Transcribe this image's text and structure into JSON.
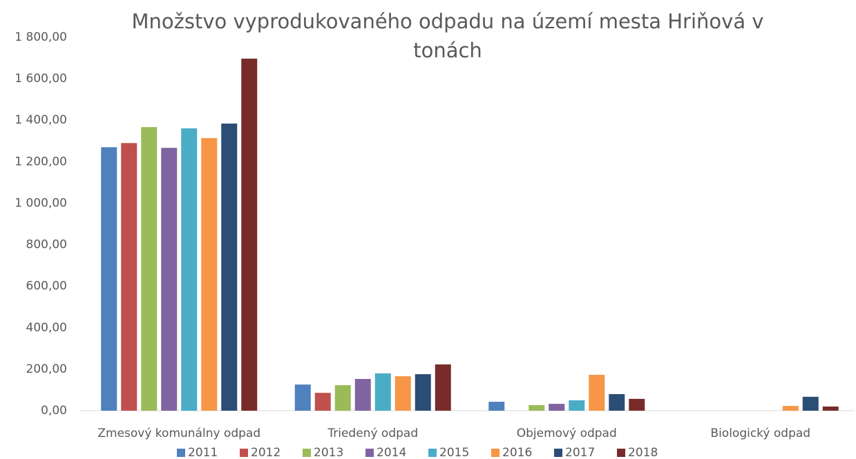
{
  "chart_data": {
    "type": "bar",
    "title": "Množstvo vyprodukovaného odpadu na území mesta Hriňová v tonách",
    "categories": [
      "Zmesový komunálny odpad",
      "Triedený odpad",
      "Objemový odpad",
      "Biologický odpad"
    ],
    "series": [
      {
        "name": "2011",
        "color": "#4f81bd",
        "values": [
          1270,
          126,
          43,
          null
        ]
      },
      {
        "name": "2012",
        "color": "#c0504d",
        "values": [
          1290,
          86,
          null,
          null
        ]
      },
      {
        "name": "2013",
        "color": "#9bbb59",
        "values": [
          1367,
          123,
          27,
          null
        ]
      },
      {
        "name": "2014",
        "color": "#8064a2",
        "values": [
          1267,
          153,
          33,
          null
        ]
      },
      {
        "name": "2015",
        "color": "#4bacc6",
        "values": [
          1361,
          180,
          50,
          null
        ]
      },
      {
        "name": "2016",
        "color": "#f79646",
        "values": [
          1314,
          166,
          173,
          23
        ]
      },
      {
        "name": "2017",
        "color": "#2c4d75",
        "values": [
          1384,
          176,
          80,
          67
        ]
      },
      {
        "name": "2018",
        "color": "#772c2a",
        "values": [
          1697,
          223,
          57,
          20
        ]
      }
    ],
    "ylim": [
      0,
      1800
    ],
    "yticks": [
      {
        "value": 0,
        "label": "0,00"
      },
      {
        "value": 200,
        "label": "200,00"
      },
      {
        "value": 400,
        "label": "400,00"
      },
      {
        "value": 600,
        "label": "600,00"
      },
      {
        "value": 800,
        "label": "800,00"
      },
      {
        "value": 1000,
        "label": "1 000,00"
      },
      {
        "value": 1200,
        "label": "1 200,00"
      },
      {
        "value": 1400,
        "label": "1 400,00"
      },
      {
        "value": 1600,
        "label": "1 600,00"
      },
      {
        "value": 1800,
        "label": "1 800,00"
      }
    ],
    "grid": false,
    "legend": "bottom"
  }
}
